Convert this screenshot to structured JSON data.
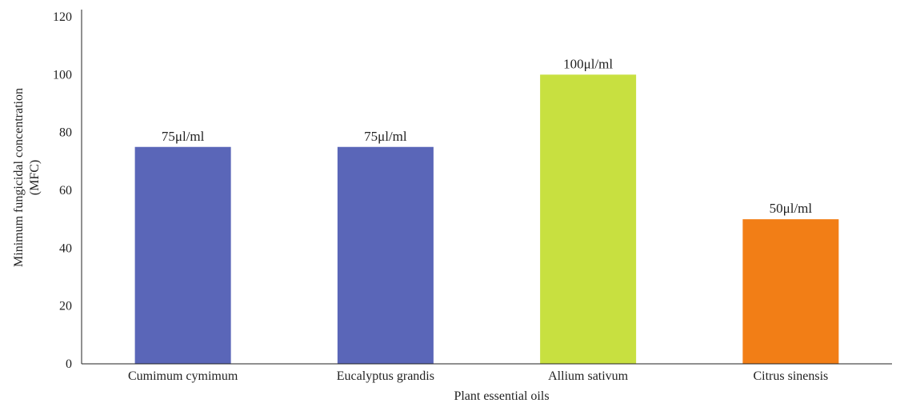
{
  "chart_data": {
    "type": "bar",
    "categories": [
      "Cumimum cymimum",
      "Eucalyptus grandis",
      "Allium sativum",
      "Citrus sinensis"
    ],
    "values": [
      75,
      75,
      100,
      50
    ],
    "data_labels": [
      "75μl/ml",
      "75μl/ml",
      "100μl/ml",
      "50μl/ml"
    ],
    "colors": [
      "#5a66b8",
      "#5a66b8",
      "#c8e040",
      "#f27e16"
    ],
    "title": "",
    "xlabel": "Plant essential oils",
    "ylabel_lines": [
      "Minimum fungicidal concentration",
      "(MFC)"
    ],
    "ylim": [
      0,
      120
    ],
    "yticks": [
      0,
      20,
      40,
      60,
      80,
      100,
      120
    ],
    "grid": false,
    "legend": "none"
  }
}
